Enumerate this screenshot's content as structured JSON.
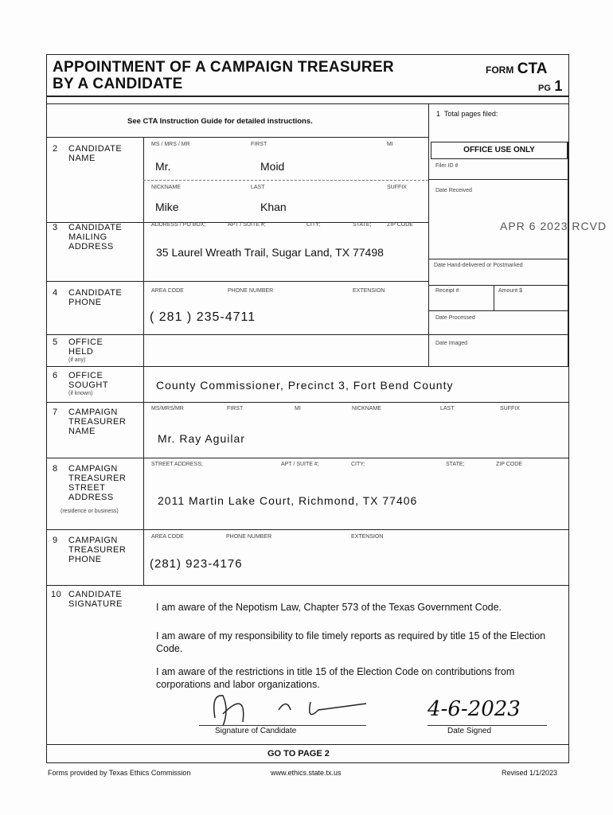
{
  "header": {
    "title_line1": "APPOINTMENT OF A CAMPAIGN TREASURER",
    "title_line2": "BY A CANDIDATE",
    "form_label": "FORM",
    "form_code": "CTA",
    "pg_label": "PG",
    "pg_number": "1"
  },
  "instructions": "See CTA Instruction Guide for detailed instructions.",
  "total_pages": {
    "value": "1",
    "label": "Total pages filed:"
  },
  "office_use": {
    "title": "OFFICE USE ONLY",
    "filer_id": "Filer ID #",
    "date_received": "Date Received",
    "stamp": "APR 6 2023 RCVD",
    "date_hand": "Date Hand-delivered or Postmarked",
    "receipt": "Receipt #",
    "amount": "Amount $",
    "date_processed": "Date Processed",
    "date_imaged": "Date Imaged"
  },
  "sections": {
    "s2": {
      "num": "2",
      "label": "CANDIDATE NAME",
      "f_title": "MS / MRS / MR",
      "f_first": "FIRST",
      "f_mi": "MI",
      "f_nick": "NICKNAME",
      "f_last": "LAST",
      "f_suffix": "SUFFIX",
      "title": "Mr.",
      "first": "Moid",
      "nickname": "Mike",
      "last": "Khan"
    },
    "s3": {
      "num": "3",
      "label": "CANDIDATE MAILING ADDRESS",
      "f_addr": "ADDRESS / PO BOX;",
      "f_apt": "APT / SUITE #;",
      "f_city": "CITY;",
      "f_state": "STATE;",
      "f_zip": "ZIP CODE",
      "value": "35 Laurel Wreath Trail, Sugar Land, TX 77498"
    },
    "s4": {
      "num": "4",
      "label": "CANDIDATE PHONE",
      "f_area": "AREA CODE",
      "f_phone": "PHONE NUMBER",
      "f_ext": "EXTENSION",
      "value": "( 281 ) 235-4711"
    },
    "s5": {
      "num": "5",
      "label": "OFFICE HELD",
      "note": "(if any)"
    },
    "s6": {
      "num": "6",
      "label": "OFFICE SOUGHT",
      "note": "(if known)",
      "value": "County Commissioner, Precinct 3, Fort Bend County"
    },
    "s7": {
      "num": "7",
      "label": "CAMPAIGN TREASURER NAME",
      "f_title": "MS/MRS/MR",
      "f_first": "FIRST",
      "f_mi": "MI",
      "f_nick": "NICKNAME",
      "f_last": "LAST",
      "f_suffix": "SUFFIX",
      "value": "Mr. Ray Aguilar"
    },
    "s8": {
      "num": "8",
      "label": "CAMPAIGN TREASURER STREET ADDRESS",
      "note": "(residence or business)",
      "f_addr": "STREET ADDRESS;",
      "f_apt": "APT / SUITE #;",
      "f_city": "CITY;",
      "f_state": "STATE;",
      "f_zip": "ZIP CODE",
      "value": "2011 Martin Lake Court, Richmond, TX 77406"
    },
    "s9": {
      "num": "9",
      "label": "CAMPAIGN TREASURER PHONE",
      "f_area": "AREA CODE",
      "f_phone": "PHONE NUMBER",
      "f_ext": "EXTENSION",
      "value": "(281) 923-4176"
    },
    "s10": {
      "num": "10",
      "label": "CANDIDATE SIGNATURE",
      "stmt1": "I am aware of the Nepotism Law, Chapter 573 of the Texas Government Code.",
      "stmt2": "I am aware of my responsibility to file timely reports as required by title 15 of the Election Code.",
      "stmt3": "I am aware of the restrictions in title 15 of the Election Code on contributions from corporations and labor organizations.",
      "sig_label": "Signature of Candidate",
      "date_label": "Date Signed",
      "date_value": "4-6-2023"
    }
  },
  "goto": "GO TO PAGE 2",
  "footer": {
    "left": "Forms provided by Texas Ethics Commission",
    "center": "www.ethics.state.tx.us",
    "right": "Revised 1/1/2023"
  }
}
